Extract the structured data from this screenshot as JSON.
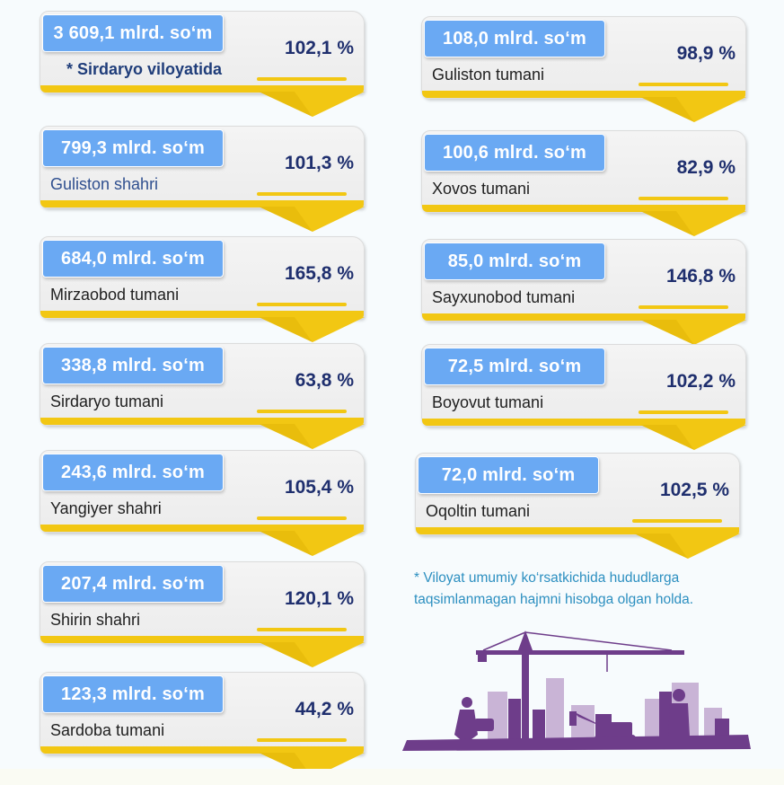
{
  "colors": {
    "amount_bg": "#6aa9f3",
    "percent_text": "#1f2f6e",
    "ribbon_yellow": "#f2c713",
    "footnote_text": "#2c8fc0",
    "silhouette": "#6e3d8a"
  },
  "left_cards": [
    {
      "amount": "3 609,1 mlrd. so‘m",
      "region": "* Sirdaryo viloyatida",
      "percent": "102,1 %"
    },
    {
      "amount": "799,3 mlrd. so‘m",
      "region": "Guliston shahri",
      "percent": "101,3 %"
    },
    {
      "amount": "684,0 mlrd. so‘m",
      "region": "Mirzaobod tumani",
      "percent": "165,8 %"
    },
    {
      "amount": "338,8 mlrd. so‘m",
      "region": "Sirdaryo tumani",
      "percent": "63,8 %"
    },
    {
      "amount": "243,6 mlrd. so‘m",
      "region": "Yangiyer shahri",
      "percent": "105,4 %"
    },
    {
      "amount": "207,4 mlrd. so‘m",
      "region": "Shirin shahri",
      "percent": "120,1 %"
    },
    {
      "amount": "123,3 mlrd. so‘m",
      "region": "Sardoba tumani",
      "percent": "44,2 %"
    }
  ],
  "right_cards": [
    {
      "amount": "108,0 mlrd. so‘m",
      "region": "Guliston tumani",
      "percent": "98,9 %"
    },
    {
      "amount": "100,6 mlrd. so‘m",
      "region": "Xovos tumani",
      "percent": "82,9 %"
    },
    {
      "amount": "85,0 mlrd. so‘m",
      "region": "Sayxunobod tumani",
      "percent": "146,8 %"
    },
    {
      "amount": "72,5 mlrd. so‘m",
      "region": "Boyovut tumani",
      "percent": "102,2 %"
    },
    {
      "amount": "72,0 mlrd. so‘m",
      "region": "Oqoltin tumani",
      "percent": "102,5 %"
    }
  ],
  "footnote": {
    "line1": "* Viloyat umumiy ko‘rsatkichida hududlarga",
    "line2": "taqsimlanmagan hajmni hisobga olgan holda."
  },
  "illustration": {
    "icon": "construction-silhouette-icon"
  }
}
